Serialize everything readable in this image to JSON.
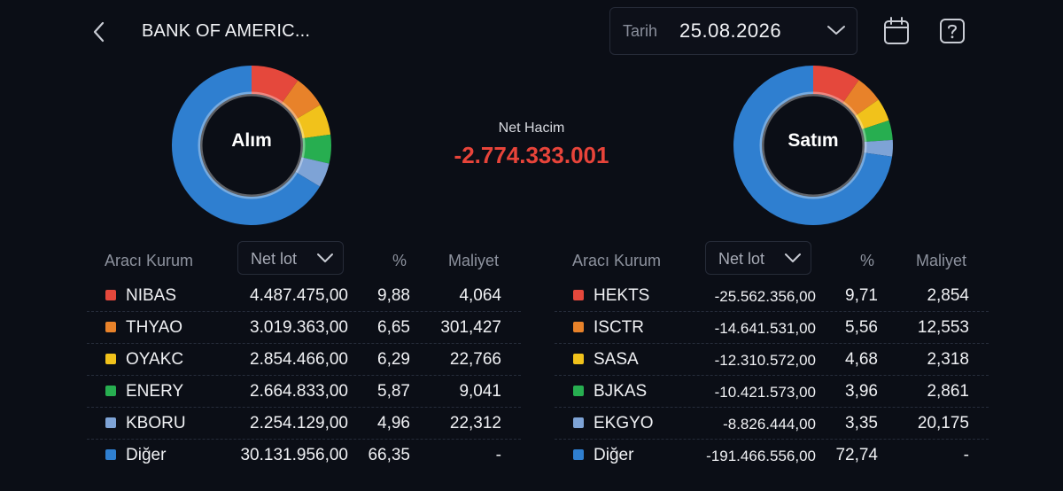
{
  "header": {
    "title": "BANK OF AMERIC...",
    "date_label": "Tarih",
    "date_value": "25.08.2026"
  },
  "summary": {
    "net_label": "Net Hacim",
    "net_value": "-2.774.333.001"
  },
  "colors": {
    "red": "#e5483c",
    "orange": "#e8822a",
    "yellow": "#f1c21b",
    "green": "#27ae50",
    "lightblue": "#7ea3d6",
    "blue": "#2f7fd0",
    "net_negative": "#e8443a"
  },
  "buy": {
    "donut_label": "Alım",
    "col_kurum": "Aracı Kurum",
    "col_select": "Net lot",
    "col_pct": "%",
    "col_cost": "Maliyet",
    "rows": [
      {
        "name": "NIBAS",
        "lot": "4.487.475,00",
        "pct": "9,88",
        "cost": "4,064",
        "color": "#e5483c",
        "share": 9.88
      },
      {
        "name": "THYAO",
        "lot": "3.019.363,00",
        "pct": "6,65",
        "cost": "301,427",
        "color": "#e8822a",
        "share": 6.65
      },
      {
        "name": "OYAKC",
        "lot": "2.854.466,00",
        "pct": "6,29",
        "cost": "22,766",
        "color": "#f1c21b",
        "share": 6.29
      },
      {
        "name": "ENERY",
        "lot": "2.664.833,00",
        "pct": "5,87",
        "cost": "9,041",
        "color": "#27ae50",
        "share": 5.87
      },
      {
        "name": "KBORU",
        "lot": "2.254.129,00",
        "pct": "4,96",
        "cost": "22,312",
        "color": "#7ea3d6",
        "share": 4.96
      },
      {
        "name": "Diğer",
        "lot": "30.131.956,00",
        "pct": "66,35",
        "cost": "-",
        "color": "#2f7fd0",
        "share": 66.35
      }
    ]
  },
  "sell": {
    "donut_label": "Satım",
    "col_kurum": "Aracı Kurum",
    "col_select": "Net lot",
    "col_pct": "%",
    "col_cost": "Maliyet",
    "rows": [
      {
        "name": "HEKTS",
        "lot": "-25.562.356,00",
        "pct": "9,71",
        "cost": "2,854",
        "color": "#e5483c",
        "share": 9.71
      },
      {
        "name": "ISCTR",
        "lot": "-14.641.531,00",
        "pct": "5,56",
        "cost": "12,553",
        "color": "#e8822a",
        "share": 5.56
      },
      {
        "name": "SASA",
        "lot": "-12.310.572,00",
        "pct": "4,68",
        "cost": "2,318",
        "color": "#f1c21b",
        "share": 4.68
      },
      {
        "name": "BJKAS",
        "lot": "-10.421.573,00",
        "pct": "3,96",
        "cost": "2,861",
        "color": "#27ae50",
        "share": 3.96
      },
      {
        "name": "EKGYO",
        "lot": "-8.826.444,00",
        "pct": "3,35",
        "cost": "20,175",
        "color": "#7ea3d6",
        "share": 3.35
      },
      {
        "name": "Diğer",
        "lot": "-191.466.556,00",
        "pct": "72,74",
        "cost": "-",
        "color": "#2f7fd0",
        "share": 72.74
      }
    ]
  }
}
